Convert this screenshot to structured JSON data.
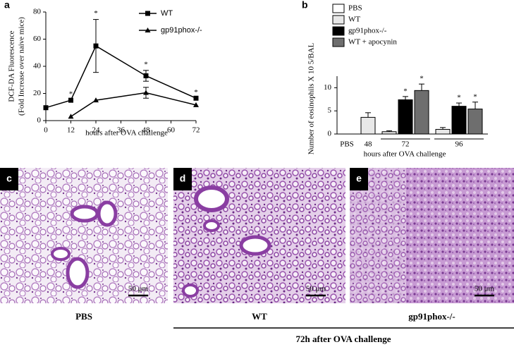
{
  "chart_data": [
    {
      "type": "line",
      "panel_label": "a",
      "ylabel": [
        "DCF-DA Fluorescence",
        "(Fold Increase over naive mice)"
      ],
      "xlabel": "hours after OVA challenge",
      "x": [
        0,
        12,
        24,
        48,
        72
      ],
      "series": [
        {
          "name": "WT",
          "color": "#000000",
          "marker": "square",
          "values": [
            9.5,
            15,
            55,
            33,
            16.5
          ],
          "errors": [
            null,
            null,
            19.5,
            4,
            null
          ],
          "star_labels": [
            null,
            "*",
            "*",
            "*",
            "*"
          ]
        },
        {
          "name": "gp91phox-/-",
          "color": "#000000",
          "marker": "triangle",
          "values": [
            null,
            3,
            15,
            20.5,
            11.5
          ],
          "errors": [
            null,
            null,
            null,
            4,
            null
          ]
        }
      ],
      "xlim": [
        0,
        72
      ],
      "xticks": [
        0,
        12,
        24,
        36,
        48,
        60,
        72
      ],
      "ylim": [
        0,
        80
      ],
      "yticks": [
        0,
        20,
        40,
        60,
        80
      ]
    },
    {
      "type": "bar",
      "panel_label": "b",
      "ylabel": "Number of eosinophils X 10 5/BAL",
      "xlabel": "hours after OVA challenge",
      "categories": [
        "PBS",
        "48",
        "72",
        "96"
      ],
      "series": [
        {
          "name": "PBS",
          "color": "#ffffff",
          "values": [
            0,
            null,
            null,
            null
          ],
          "errors": [
            null,
            null,
            null,
            null
          ]
        },
        {
          "name": "WT",
          "color": "#e8e8e8",
          "values": [
            null,
            3.6,
            0.5,
            1.0
          ],
          "errors": [
            null,
            1.0,
            0.2,
            0.4
          ]
        },
        {
          "name": "gp91phox-/-",
          "color": "#000000",
          "values": [
            null,
            null,
            7.4,
            6.0
          ],
          "errors": [
            null,
            null,
            0.7,
            0.7
          ],
          "star_labels": [
            null,
            null,
            "*",
            "*"
          ]
        },
        {
          "name": "WT + apocynin",
          "color": "#6e6e6e",
          "values": [
            null,
            null,
            9.4,
            5.4
          ],
          "errors": [
            null,
            null,
            1.4,
            1.5
          ],
          "star_labels": [
            null,
            null,
            "*",
            "*"
          ]
        }
      ],
      "ylim": [
        0,
        12.5
      ],
      "yticks": [
        0,
        5,
        10
      ]
    }
  ],
  "micrographs": [
    {
      "panel_label": "c",
      "scale_bar": "50 μm",
      "caption": "PBS"
    },
    {
      "panel_label": "d",
      "scale_bar": "50 μm",
      "caption": "WT"
    },
    {
      "panel_label": "e",
      "scale_bar": "50 μm",
      "caption": "gp91phox-/-"
    }
  ],
  "group_caption": "72h after OVA challenge"
}
